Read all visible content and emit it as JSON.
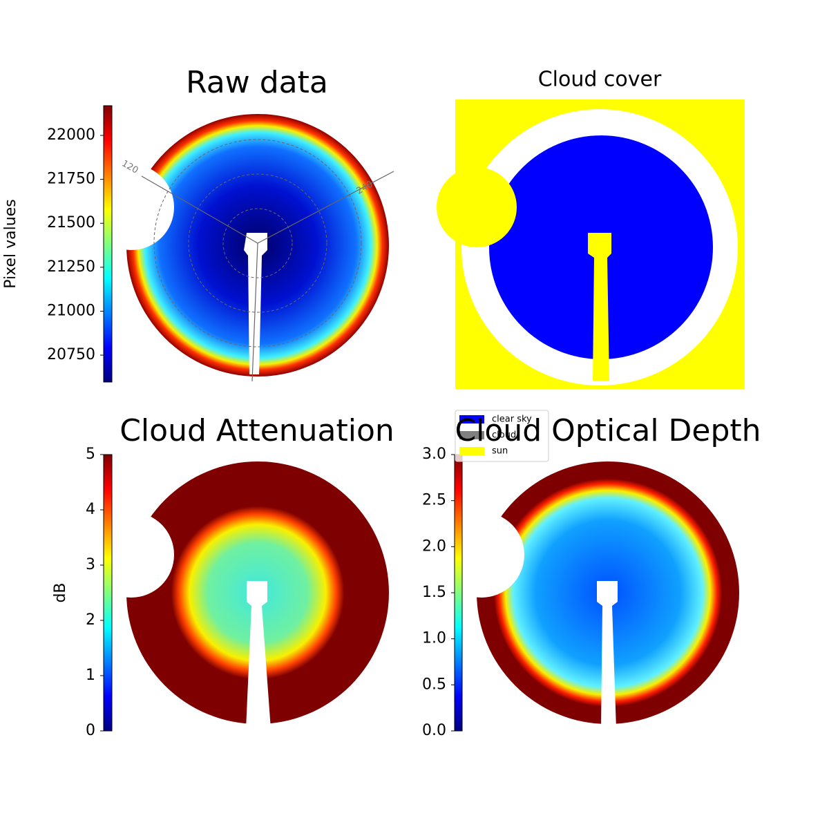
{
  "chart_data": [
    {
      "type": "image",
      "title": "Raw data",
      "colorbar_label": "Pixel values",
      "colormap": "jet",
      "ylim": [
        20597,
        22169
      ],
      "yticks": [
        20750,
        21000,
        21250,
        21500,
        21750,
        22000
      ],
      "polar_labels": [
        "120",
        "240"
      ]
    },
    {
      "type": "image",
      "title": "Cloud cover",
      "legend": [
        {
          "name": "clear sky",
          "color": "#0000ff"
        },
        {
          "name": "cloud",
          "color": "#808080"
        },
        {
          "name": "sun",
          "color": "#ffff00"
        }
      ]
    },
    {
      "type": "image",
      "title": "Cloud Attenuation",
      "colorbar_label": "dB",
      "colormap": "jet",
      "ylim": [
        0,
        5
      ],
      "yticks": [
        0,
        1,
        2,
        3,
        4,
        5
      ]
    },
    {
      "type": "image",
      "title": "Cloud Optical Depth",
      "colormap": "jet",
      "ylim": [
        0,
        3
      ],
      "yticks": [
        {
          "value": 0,
          "label": "0.0"
        },
        {
          "value": 0.5,
          "label": "0.5"
        },
        {
          "value": 1,
          "label": "1.0"
        },
        {
          "value": 1.5,
          "label": "1.5"
        },
        {
          "value": 2,
          "label": "2.0"
        },
        {
          "value": 2.5,
          "label": "2.5"
        },
        {
          "value": 3,
          "label": "3.0"
        }
      ]
    }
  ]
}
